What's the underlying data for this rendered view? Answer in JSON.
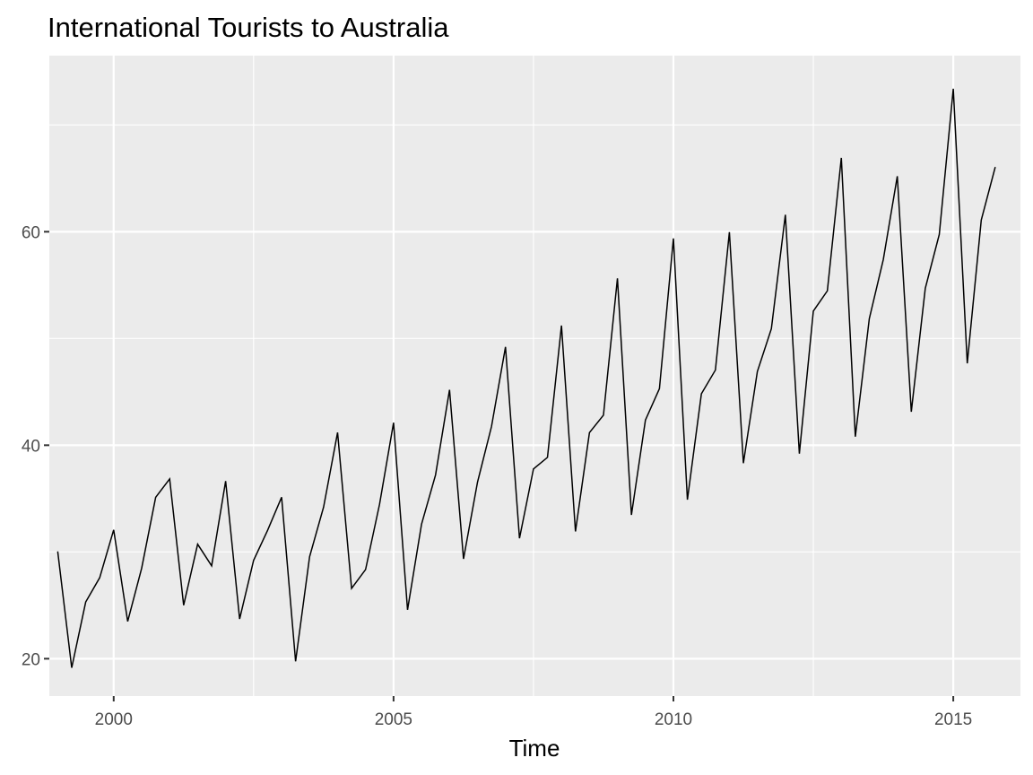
{
  "chart_data": {
    "type": "line",
    "title": "International Tourists to Australia",
    "xlabel": "Time",
    "ylabel": "",
    "xlim": [
      1998.85,
      2016.2
    ],
    "ylim": [
      16.5,
      76.5
    ],
    "x_ticks": [
      2000,
      2005,
      2010,
      2015
    ],
    "x_tick_labels": [
      "2000",
      "2005",
      "2010",
      "2015"
    ],
    "y_ticks": [
      20,
      40,
      60
    ],
    "y_tick_labels": [
      "20",
      "40",
      "60"
    ],
    "grid": true,
    "colors": {
      "panel": "#ebebeb",
      "grid": "#ffffff",
      "line": "#000000"
    },
    "series": [
      {
        "start": 1999.0,
        "frequency": 4,
        "values": [
          30.05,
          19.15,
          25.31,
          27.59,
          32.07,
          23.49,
          28.48,
          35.12,
          36.84,
          25.01,
          30.73,
          28.7,
          36.64,
          23.72,
          29.22,
          32.03,
          35.13,
          19.75,
          29.55,
          34.2,
          41.19,
          26.59,
          28.35,
          34.47,
          42.11,
          24.58,
          32.6,
          37.21,
          45.19,
          29.35,
          36.54,
          41.75,
          49.21,
          31.28,
          37.78,
          38.86,
          51.21,
          31.92,
          41.18,
          42.82,
          55.63,
          33.47,
          42.35,
          45.3,
          59.37,
          34.9,
          44.82,
          47.04,
          59.96,
          38.32,
          46.91,
          50.91,
          61.59,
          39.21,
          52.57,
          54.46,
          66.92,
          40.8,
          51.86,
          57.4,
          65.2,
          43.13,
          54.7,
          59.75,
          73.4,
          47.67,
          61.1,
          66.06
        ]
      }
    ]
  }
}
